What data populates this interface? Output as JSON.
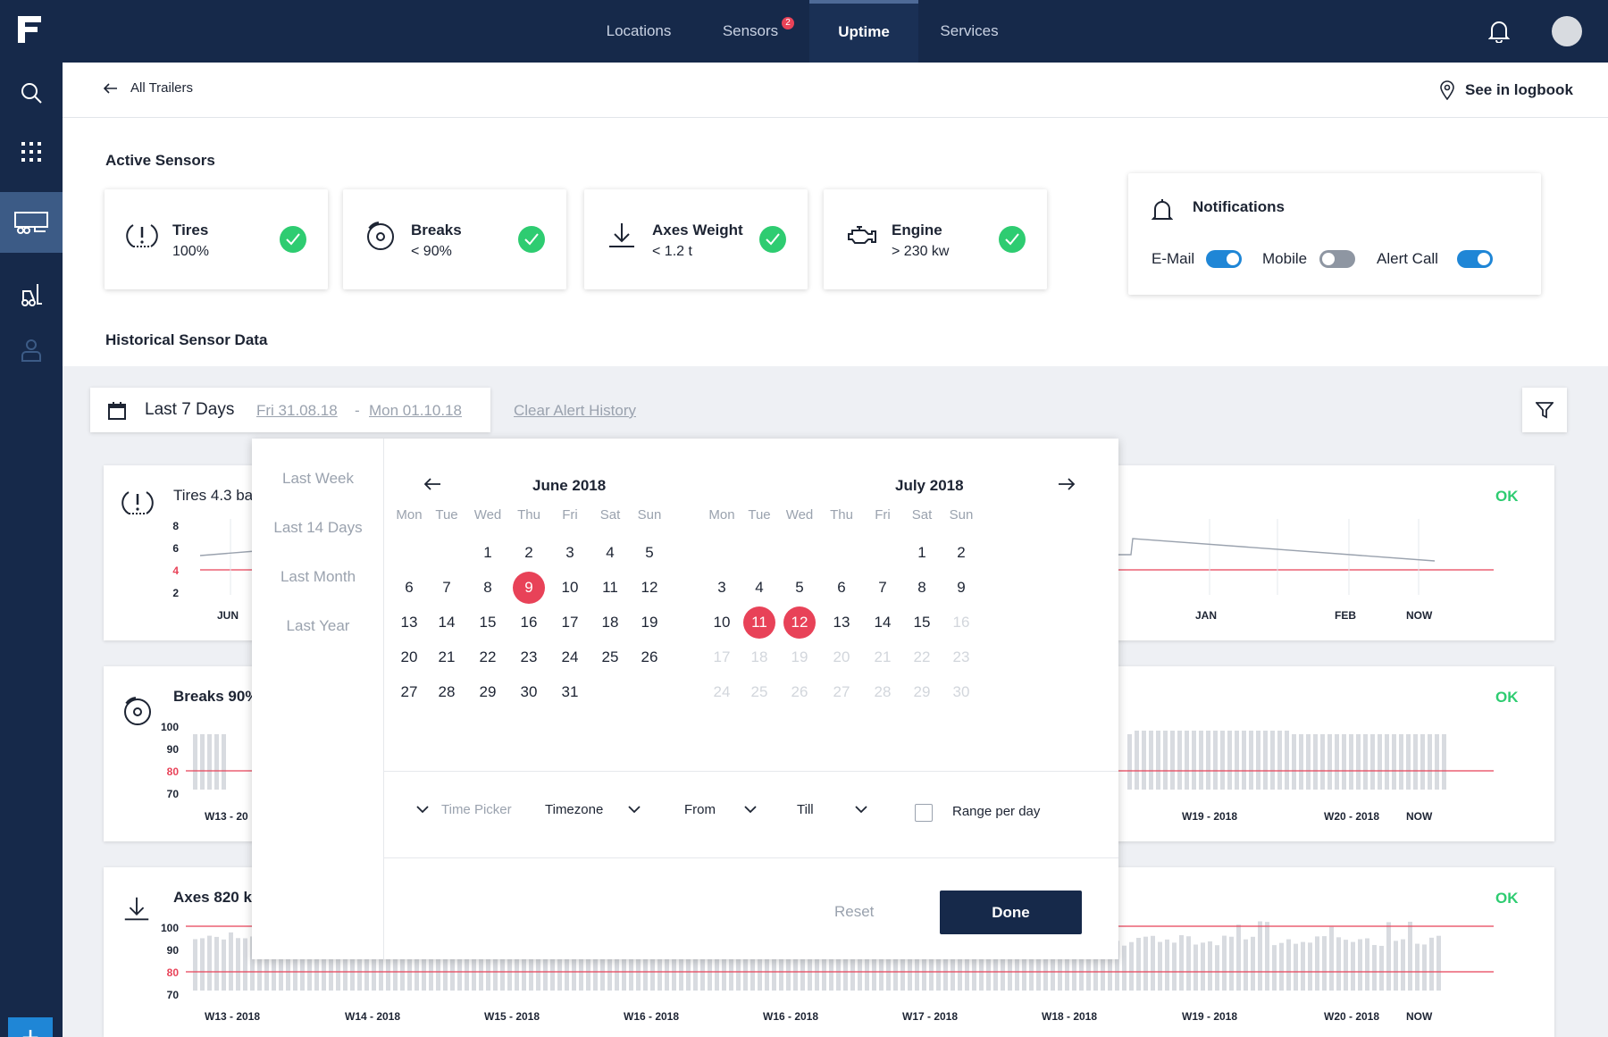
{
  "nav": {
    "logo": "F",
    "items": [
      {
        "label": "Locations"
      },
      {
        "label": "Sensors",
        "badge": "2"
      },
      {
        "label": "Uptime"
      },
      {
        "label": "Services"
      }
    ]
  },
  "sidebar": {
    "items": [
      "search-icon",
      "apps-grid-icon",
      "trailer-icon",
      "forklift-icon",
      "user-icon"
    ],
    "add_label": "+"
  },
  "subheader": {
    "back_label": "All Trailers",
    "logbook_label": "See in logbook"
  },
  "active_sensors": {
    "title": "Active Sensors",
    "cards": [
      {
        "name": "Tires",
        "value": "100%"
      },
      {
        "name": "Breaks",
        "value": "< 90%"
      },
      {
        "name": "Axes Weight",
        "value": "< 1.2 t"
      },
      {
        "name": "Engine",
        "value": "> 230 kw"
      }
    ]
  },
  "notifications": {
    "title": "Notifications",
    "toggles": [
      {
        "label": "E-Mail",
        "on": true
      },
      {
        "label": "Mobile",
        "on": false
      },
      {
        "label": "Alert Call",
        "on": true
      }
    ]
  },
  "historical": {
    "title": "Historical Sensor Data",
    "range_label": "Last 7 Days",
    "start_date": "Fri 31.08.18",
    "separator": "-",
    "end_date": "Mon 01.10.18",
    "clear_label": "Clear Alert History"
  },
  "charts": {
    "tires": {
      "title": "Tires 4.3 ba",
      "status": "OK",
      "yticks": [
        "8",
        "6",
        "4",
        "2"
      ],
      "xticks": [
        "JUN",
        "JAN",
        "FEB",
        "NOW"
      ]
    },
    "breaks": {
      "title": "Breaks 90%",
      "status": "OK",
      "yticks": [
        "100",
        "90",
        "80",
        "70"
      ],
      "xticks": [
        "W13 - 20",
        "W19 - 2018",
        "W20 - 2018",
        "NOW"
      ]
    },
    "axes": {
      "title": "Axes 820 k",
      "status": "OK",
      "yticks": [
        "100",
        "90",
        "80",
        "70"
      ],
      "xticks": [
        "W13 - 2018",
        "W14 - 2018",
        "W15 - 2018",
        "W16 - 2018",
        "W16 - 2018",
        "W17 - 2018",
        "W18 - 2018",
        "W19 - 2018",
        "W20 - 2018",
        "NOW"
      ]
    }
  },
  "datepicker": {
    "presets": [
      "Last Week",
      "Last 14 Days",
      "Last Month",
      "Last Year"
    ],
    "weekdays": [
      "Mon",
      "Tue",
      "Wed",
      "Thu",
      "Fri",
      "Sat",
      "Sun"
    ],
    "months": [
      {
        "title": "June 2018",
        "offset": 2,
        "days": 31,
        "selected": [
          9
        ],
        "muted_from": 99
      },
      {
        "title": "July 2018",
        "offset": 5,
        "days": 30,
        "selected": [
          11,
          12
        ],
        "muted_from": 16
      }
    ],
    "time_picker_label": "Time Picker",
    "timezone_label": "Timezone",
    "from_label": "From",
    "till_label": "Till",
    "range_per_day_label": "Range per day",
    "reset_label": "Reset",
    "done_label": "Done"
  },
  "colors": {
    "nav": "#16294a",
    "accent": "#1f86d6",
    "alert": "#e84258",
    "ok": "#2ecc71"
  }
}
